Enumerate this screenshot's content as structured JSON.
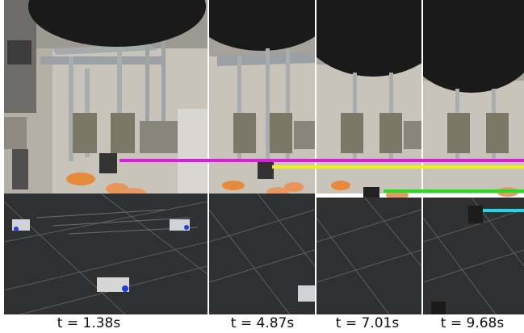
{
  "figure": {
    "panels": [
      {
        "label": "t = 1.38s"
      },
      {
        "label": "t = 4.87s"
      },
      {
        "label": "t = 7.01s"
      },
      {
        "label": "t = 9.68s"
      }
    ],
    "trajectory_colors": {
      "magenta": "#e01ae0",
      "yellow": "#f0f020",
      "green": "#20e020",
      "cyan": "#20d8e8"
    }
  }
}
